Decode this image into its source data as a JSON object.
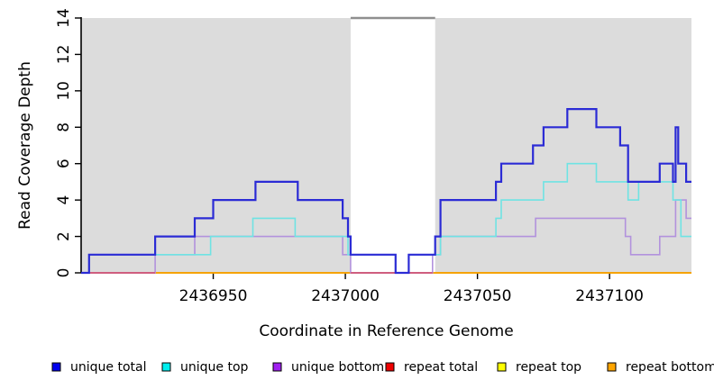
{
  "chart_data": {
    "type": "line",
    "subtype": "step-coverage-plot",
    "title": "",
    "xlabel": "Coordinate in Reference Genome",
    "ylabel": "Read Coverage Depth",
    "xlim": [
      2436900,
      2437131
    ],
    "ylim": [
      0,
      14
    ],
    "xticks": [
      2436950,
      2437000,
      2437050,
      2437100
    ],
    "xtick_labels": [
      "2436950",
      "2437000",
      "2437050",
      "2437100"
    ],
    "yticks": [
      0,
      2,
      4,
      6,
      8,
      10,
      12,
      14
    ],
    "ytick_labels": [
      "0",
      "2",
      "4",
      "6",
      "8",
      "10",
      "12",
      "14"
    ],
    "grid": false,
    "legend_position": "bottom",
    "shaded_region_color": "#dcdcdc",
    "shaded_regions": [
      [
        2436900,
        2437002
      ],
      [
        2437034,
        2437131
      ]
    ],
    "gap_top_line": {
      "x_start": 2437002,
      "x_end": 2437034,
      "depth": 14,
      "color": "#8f8f8f"
    },
    "zero_overlay": {
      "comment_color_of_unique_bottom_over_repeat_bottom_at_zero": true,
      "color": "#cf4b82",
      "segments": [
        [
          2436903,
          2436928
        ],
        [
          2437002,
          2437019
        ],
        [
          2437024,
          2437033
        ]
      ]
    },
    "series": [
      {
        "key": "unique_total",
        "label": "unique total",
        "legend_color": "#0000ee",
        "line_color": "#2b2bd5",
        "line_width": 2.2,
        "points": [
          [
            2436900,
            0
          ],
          [
            2436903,
            1
          ],
          [
            2436928,
            2
          ],
          [
            2436943,
            3
          ],
          [
            2436950,
            4
          ],
          [
            2436966,
            5
          ],
          [
            2436982,
            4
          ],
          [
            2436999,
            3
          ],
          [
            2437001,
            2
          ],
          [
            2437002,
            1
          ],
          [
            2437019,
            0
          ],
          [
            2437024,
            1
          ],
          [
            2437034,
            2
          ],
          [
            2437036,
            4
          ],
          [
            2437057,
            5
          ],
          [
            2437059,
            6
          ],
          [
            2437071,
            7
          ],
          [
            2437075,
            8
          ],
          [
            2437084,
            9
          ],
          [
            2437095,
            8
          ],
          [
            2437104,
            7
          ],
          [
            2437107,
            5
          ],
          [
            2437119,
            6
          ],
          [
            2437124,
            5
          ],
          [
            2437125,
            8
          ],
          [
            2437126,
            6
          ],
          [
            2437129,
            5
          ]
        ]
      },
      {
        "key": "unique_top",
        "label": "unique top",
        "legend_color": "#00eeee",
        "line_color": "#6fe3e3",
        "line_width": 1.6,
        "points": [
          [
            2436900,
            0
          ],
          [
            2436903,
            1
          ],
          [
            2436949,
            2
          ],
          [
            2436965,
            3
          ],
          [
            2436981,
            2
          ],
          [
            2437001,
            1
          ],
          [
            2437019,
            0
          ],
          [
            2437024,
            1
          ],
          [
            2437036,
            2
          ],
          [
            2437057,
            3
          ],
          [
            2437059,
            4
          ],
          [
            2437075,
            5
          ],
          [
            2437084,
            6
          ],
          [
            2437095,
            5
          ],
          [
            2437107,
            4
          ],
          [
            2437111,
            5
          ],
          [
            2437124,
            4
          ],
          [
            2437127,
            2
          ]
        ]
      },
      {
        "key": "unique_bottom",
        "label": "unique bottom",
        "legend_color": "#a020f0",
        "line_color": "#b292dd",
        "line_width": 1.6,
        "points": [
          [
            2436900,
            0
          ],
          [
            2436928,
            1
          ],
          [
            2436943,
            2
          ],
          [
            2436999,
            1
          ],
          [
            2437002,
            0
          ],
          [
            2437033,
            1
          ],
          [
            2437036,
            2
          ],
          [
            2437072,
            3
          ],
          [
            2437106,
            2
          ],
          [
            2437108,
            1
          ],
          [
            2437119,
            2
          ],
          [
            2437125,
            4
          ],
          [
            2437129,
            3
          ]
        ]
      },
      {
        "key": "repeat_total",
        "label": "repeat total",
        "legend_color": "#ee0000",
        "line_color": "#ee0000",
        "line_width": 1.4,
        "points": [
          [
            2436900,
            0
          ]
        ]
      },
      {
        "key": "repeat_top",
        "label": "repeat top",
        "legend_color": "#ffff00",
        "line_color": "#ffff00",
        "line_width": 1.4,
        "points": [
          [
            2436900,
            0
          ]
        ]
      },
      {
        "key": "repeat_bottom",
        "label": "repeat bottom",
        "legend_color": "#ffa500",
        "line_color": "#ffa500",
        "line_width": 1.6,
        "points": [
          [
            2436900,
            0
          ]
        ]
      }
    ],
    "draw_order": [
      "repeat_total",
      "repeat_top",
      "repeat_bottom",
      "unique_bottom",
      "zero_overlay",
      "unique_top",
      "unique_total"
    ],
    "axis_color": "#000000"
  }
}
